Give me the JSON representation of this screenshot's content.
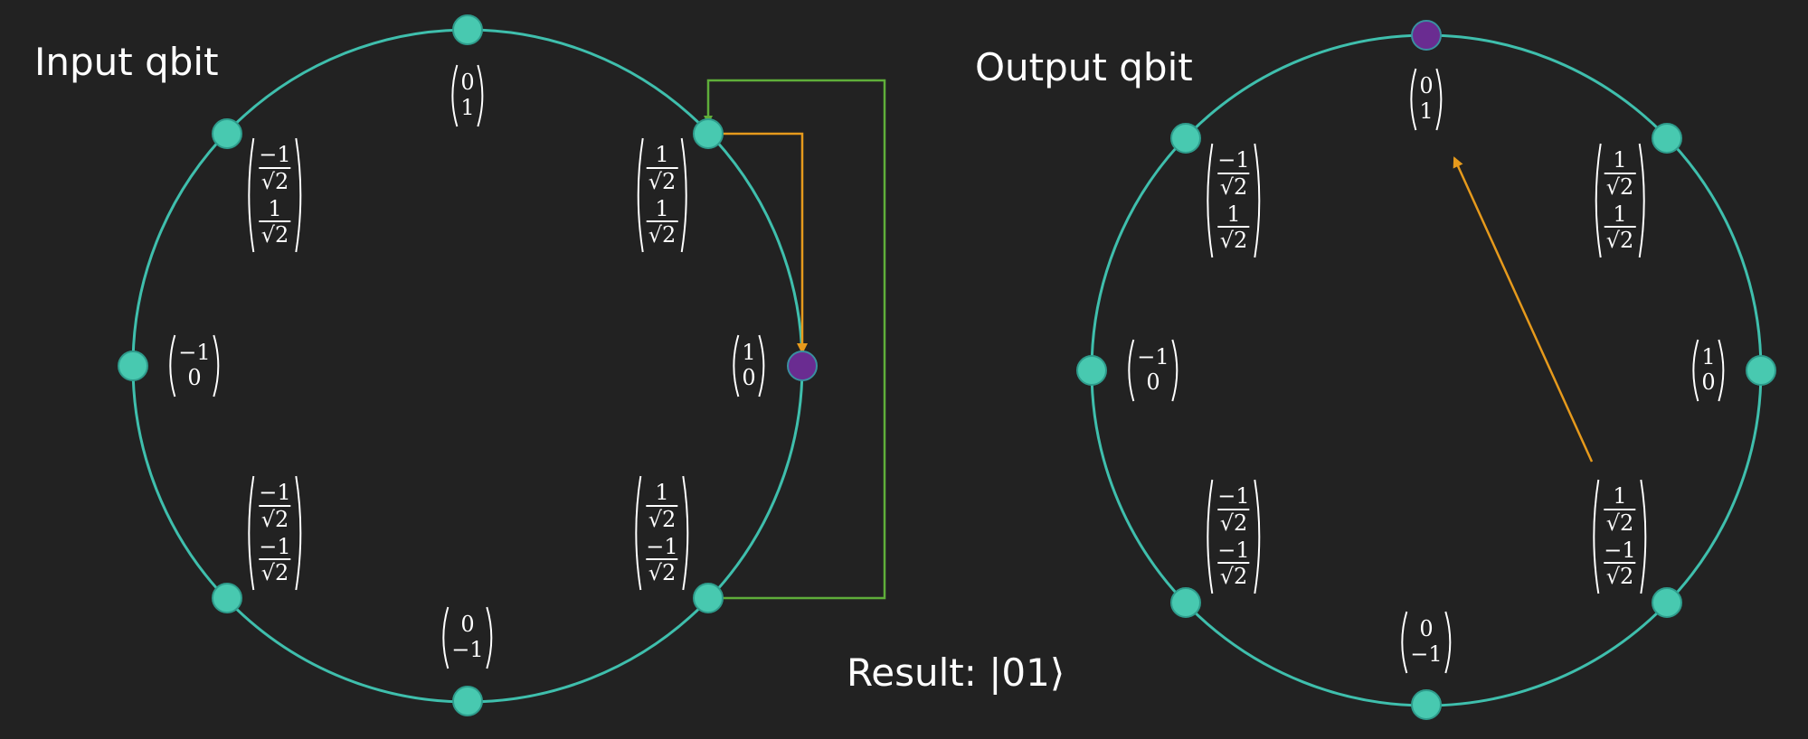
{
  "input_title": "Input qbit",
  "output_title": "Output qbit",
  "result_label": "Result: |01⟩",
  "colors": {
    "background": "#222222",
    "circle": "#3fbfad",
    "node": "#48c9b0",
    "selected_node": "#6a2c91",
    "green_arrow": "#5fae3a",
    "orange_arrow": "#e69a1c"
  },
  "input_states": [
    {
      "id": "top",
      "selected": false,
      "entries": [
        "0",
        "1"
      ]
    },
    {
      "id": "upper-right",
      "selected": false,
      "entries": [
        {
          "num": "1",
          "den": "√2"
        },
        {
          "num": "1",
          "den": "√2"
        }
      ]
    },
    {
      "id": "right",
      "selected": true,
      "entries": [
        "1",
        "0"
      ]
    },
    {
      "id": "lower-right",
      "selected": false,
      "entries": [
        {
          "num": "1",
          "den": "√2"
        },
        {
          "num": "−1",
          "den": "√2"
        }
      ]
    },
    {
      "id": "bottom",
      "selected": false,
      "entries": [
        "0",
        "−1"
      ]
    },
    {
      "id": "lower-left",
      "selected": false,
      "entries": [
        {
          "num": "−1",
          "den": "√2"
        },
        {
          "num": "−1",
          "den": "√2"
        }
      ]
    },
    {
      "id": "left",
      "selected": false,
      "entries": [
        "−1",
        "0"
      ]
    },
    {
      "id": "upper-left",
      "selected": false,
      "entries": [
        {
          "num": "−1",
          "den": "√2"
        },
        {
          "num": "1",
          "den": "√2"
        }
      ]
    }
  ],
  "output_states": [
    {
      "id": "top",
      "selected": true,
      "entries": [
        "0",
        "1"
      ]
    },
    {
      "id": "upper-right",
      "selected": false,
      "entries": [
        {
          "num": "1",
          "den": "√2"
        },
        {
          "num": "1",
          "den": "√2"
        }
      ]
    },
    {
      "id": "right",
      "selected": false,
      "entries": [
        "1",
        "0"
      ]
    },
    {
      "id": "lower-right",
      "selected": false,
      "entries": [
        {
          "num": "1",
          "den": "√2"
        },
        {
          "num": "−1",
          "den": "√2"
        }
      ]
    },
    {
      "id": "bottom",
      "selected": false,
      "entries": [
        "0",
        "−1"
      ]
    },
    {
      "id": "lower-left",
      "selected": false,
      "entries": [
        {
          "num": "−1",
          "den": "√2"
        },
        {
          "num": "−1",
          "den": "√2"
        }
      ]
    },
    {
      "id": "left",
      "selected": false,
      "entries": [
        "−1",
        "0"
      ]
    },
    {
      "id": "upper-left",
      "selected": false,
      "entries": [
        {
          "num": "−1",
          "den": "√2"
        },
        {
          "num": "1",
          "den": "√2"
        }
      ]
    }
  ]
}
